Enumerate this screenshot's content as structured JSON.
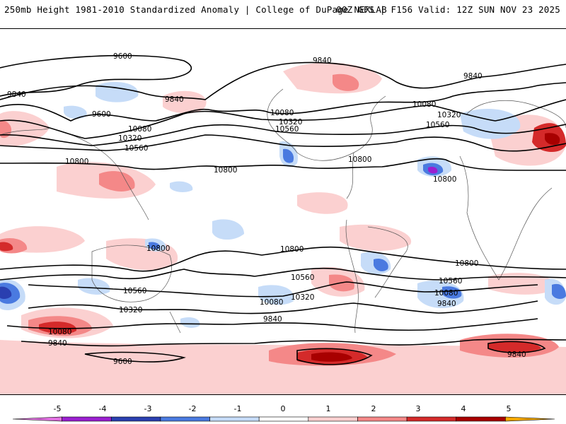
{
  "header": {
    "left": "250mb Height 1981-2010 Standardized Anomaly | College of DuPage NEXLAB",
    "right": "00Z GFS | F156 Valid: 12Z SUN NOV 23 2025"
  },
  "map": {
    "contour_labels": [
      "9600",
      "9600",
      "9600",
      "9840",
      "9840",
      "9840",
      "9840",
      "9840",
      "9840",
      "9840",
      "9840",
      "10080",
      "10080",
      "10080",
      "10080",
      "10080",
      "10080",
      "10320",
      "10320",
      "10320",
      "10320",
      "10320",
      "10560",
      "10560",
      "10560",
      "10560",
      "10560",
      "10560",
      "10800",
      "10800",
      "10800",
      "10800",
      "10800",
      "10800",
      "10800"
    ]
  },
  "colorbar": {
    "tick_labels": [
      "-5",
      "-4",
      "-3",
      "-2",
      "-1",
      "0",
      "1",
      "2",
      "3",
      "4",
      "5"
    ],
    "colors": [
      "#e070e0",
      "#9a1fd0",
      "#2a3fb0",
      "#4a7ae0",
      "#c6dcf8",
      "#ffffff",
      "#fbd0d0",
      "#f48888",
      "#d42a2a",
      "#a80000",
      "#f5a800"
    ]
  }
}
